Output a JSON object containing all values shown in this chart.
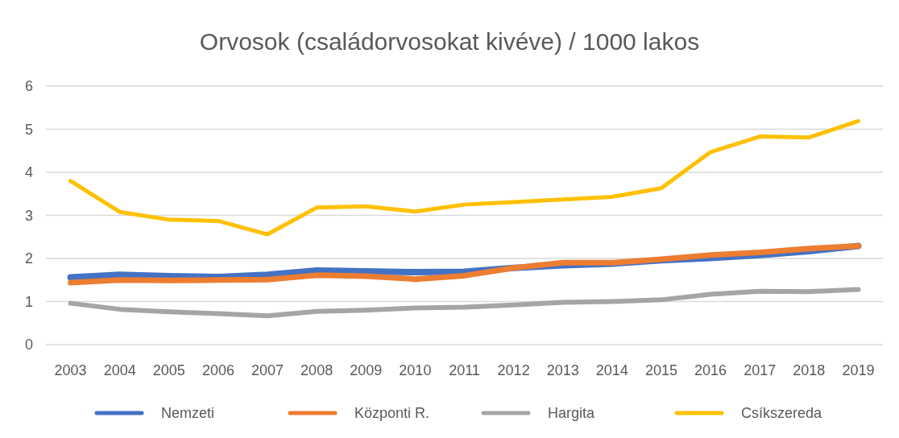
{
  "chart_data": {
    "type": "line",
    "title": "Orvosok (családorvosokat kivéve) / 1000 lakos",
    "categories": [
      "2003",
      "2004",
      "2005",
      "2006",
      "2007",
      "2008",
      "2009",
      "2010",
      "2011",
      "2012",
      "2013",
      "2014",
      "2015",
      "2016",
      "2017",
      "2018",
      "2019"
    ],
    "series": [
      {
        "name": "Nemzeti",
        "color": "#4472c4",
        "values": [
          1.56,
          1.62,
          1.59,
          1.57,
          1.62,
          1.72,
          1.7,
          1.68,
          1.69,
          1.78,
          1.84,
          1.88,
          1.96,
          2.01,
          2.08,
          2.17,
          2.29
        ]
      },
      {
        "name": "Központi R.",
        "color": "#ed7d31",
        "values": [
          1.44,
          1.5,
          1.49,
          1.5,
          1.51,
          1.61,
          1.59,
          1.52,
          1.6,
          1.78,
          1.9,
          1.9,
          1.98,
          2.08,
          2.14,
          2.23,
          2.29
        ]
      },
      {
        "name": "Hargita",
        "color": "#a5a5a5",
        "values": [
          0.96,
          0.82,
          0.76,
          0.72,
          0.67,
          0.77,
          0.8,
          0.85,
          0.87,
          0.92,
          0.98,
          1.0,
          1.04,
          1.17,
          1.24,
          1.23,
          1.28
        ]
      },
      {
        "name": "Csíkszereda",
        "color": "#ffc000",
        "values": [
          3.8,
          3.08,
          2.9,
          2.87,
          2.56,
          3.18,
          3.21,
          3.09,
          3.25,
          3.31,
          3.37,
          3.43,
          3.63,
          4.47,
          4.83,
          4.81,
          5.19
        ]
      }
    ],
    "ylim": [
      0,
      6
    ],
    "yticks": [
      0,
      1,
      2,
      3,
      4,
      5,
      6
    ],
    "grid": "y",
    "legend": "bottom",
    "marker": "none",
    "line_style": "solid"
  }
}
